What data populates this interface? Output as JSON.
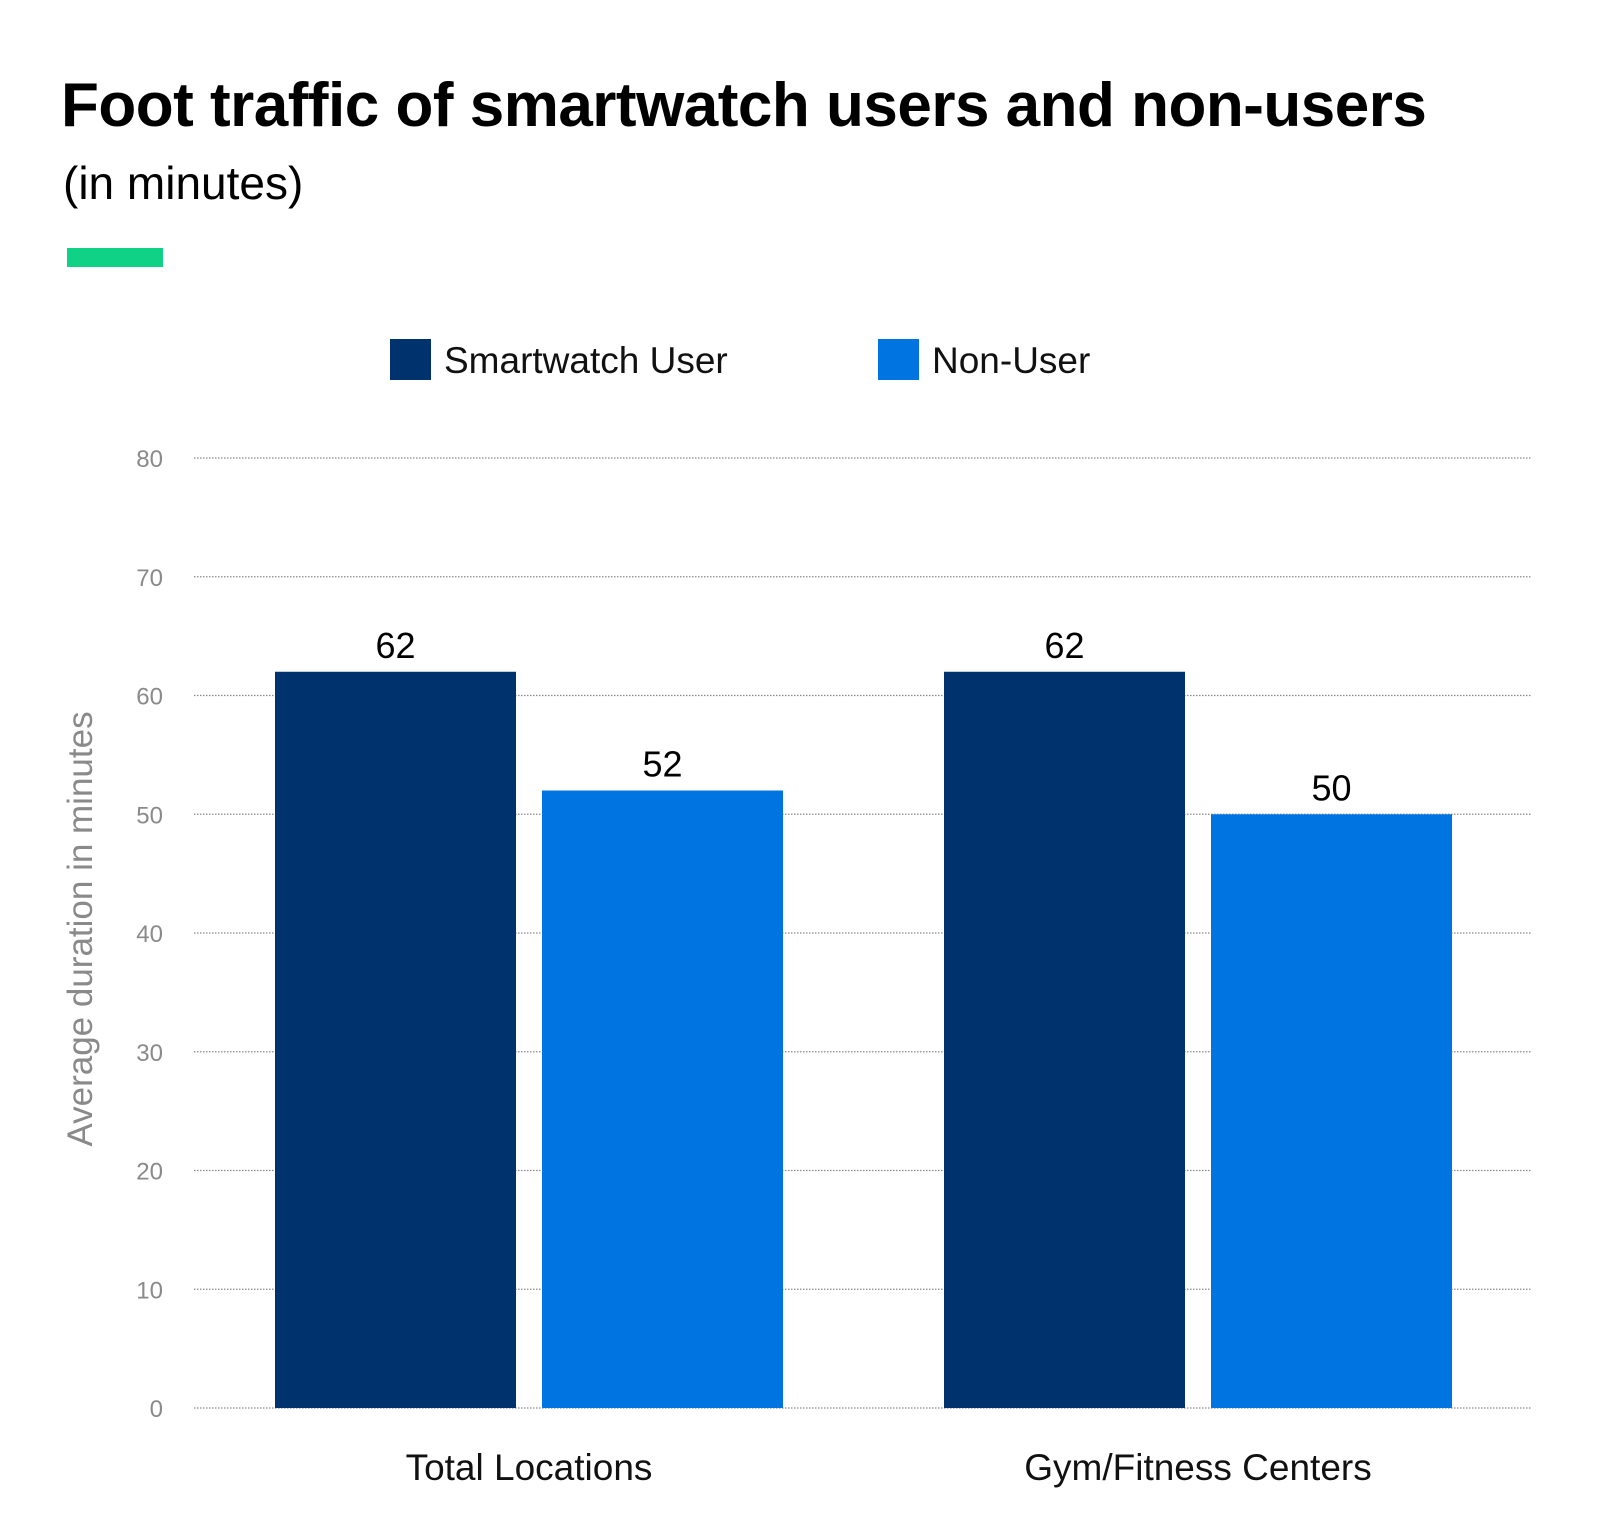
{
  "title": "Foot traffic of smartwatch users and non-users",
  "subtitle": "(in minutes)",
  "colors": {
    "accent": "#10D287",
    "smartwatch_user": "#00336E",
    "non_user": "#0074E1",
    "tick": "#8A8A8A",
    "grid": "#8A8A8A"
  },
  "chart_data": {
    "type": "bar",
    "categories": [
      "Total Locations",
      "Gym/Fitness Centers"
    ],
    "series": [
      {
        "name": "Smartwatch User",
        "values": [
          62,
          62
        ]
      },
      {
        "name": "Non-User",
        "values": [
          52,
          50
        ]
      }
    ],
    "xlabel": "",
    "ylabel": "Average duration in minutes",
    "ylim": [
      0,
      80
    ],
    "yticks": [
      0,
      10,
      20,
      30,
      40,
      50,
      60,
      70,
      80
    ],
    "grid": true,
    "grid_style": "dotted",
    "legend_position": "top-center",
    "data_labels": true
  }
}
